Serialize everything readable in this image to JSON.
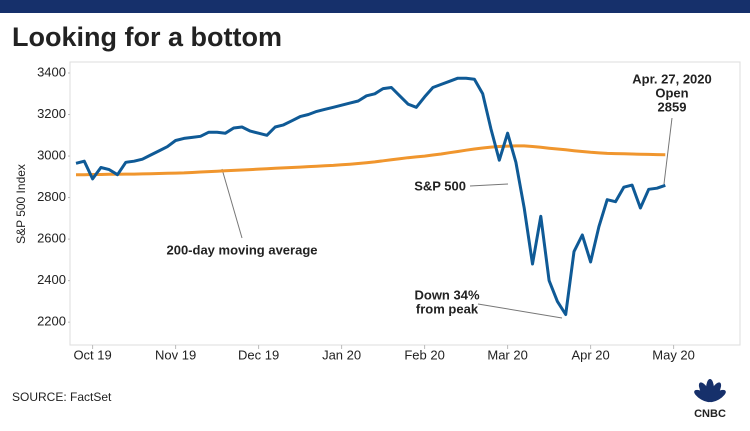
{
  "chart_data": {
    "type": "line",
    "title": "Looking for a bottom",
    "y_label": "S&P 500 Index",
    "source": "SOURCE: FactSet",
    "logo": "CNBC",
    "categories": [
      null,
      null,
      "Oct 19",
      null,
      null,
      null,
      null,
      null,
      null,
      null,
      null,
      null,
      "Nov 19",
      null,
      null,
      null,
      null,
      null,
      null,
      null,
      null,
      null,
      "Dec 19",
      null,
      null,
      null,
      null,
      null,
      null,
      null,
      null,
      null,
      "Jan 20",
      null,
      null,
      null,
      null,
      null,
      null,
      null,
      null,
      null,
      "Feb 20",
      null,
      null,
      null,
      null,
      null,
      null,
      null,
      null,
      null,
      "Mar 20",
      null,
      null,
      null,
      null,
      null,
      null,
      null,
      null,
      null,
      "Apr 20",
      null,
      null,
      null,
      null,
      null,
      null,
      null,
      null,
      null,
      "May 20"
    ],
    "series": [
      {
        "name": "S&P 500",
        "color": "#0f5a96",
        "values": [
          2965,
          2975,
          2890,
          2945,
          2935,
          2910,
          2970,
          2975,
          2985,
          3005,
          3025,
          3045,
          3075,
          3085,
          3090,
          3095,
          3115,
          3115,
          3110,
          3135,
          3140,
          3120,
          3110,
          3100,
          3140,
          3150,
          3170,
          3190,
          3200,
          3215,
          3225,
          3235,
          3245,
          3255,
          3265,
          3290,
          3300,
          3325,
          3330,
          3290,
          3250,
          3235,
          3285,
          3330,
          3345,
          3360,
          3375,
          3375,
          3370,
          3300,
          3130,
          2980,
          3110,
          2970,
          2750,
          2480,
          2710,
          2400,
          2300,
          2237,
          2540,
          2620,
          2490,
          2660,
          2790,
          2780,
          2850,
          2860,
          2750,
          2840,
          2845,
          2859,
          null
        ]
      },
      {
        "name": "200-day moving average",
        "color": "#f0962e",
        "values": [
          2910,
          2910,
          2911,
          2911,
          2912,
          2912,
          2913,
          2913,
          2914,
          2915,
          2916,
          2917,
          2918,
          2919,
          2921,
          2923,
          2925,
          2927,
          2929,
          2931,
          2933,
          2935,
          2937,
          2939,
          2941,
          2943,
          2945,
          2947,
          2949,
          2951,
          2953,
          2955,
          2958,
          2961,
          2964,
          2968,
          2972,
          2977,
          2982,
          2987,
          2992,
          2996,
          3000,
          3005,
          3010,
          3016,
          3022,
          3028,
          3034,
          3039,
          3043,
          3046,
          3048,
          3049,
          3049,
          3046,
          3042,
          3038,
          3034,
          3030,
          3026,
          3022,
          3018,
          3015,
          3013,
          3012,
          3011,
          3010,
          3009,
          3008,
          3007,
          3006,
          null
        ]
      }
    ],
    "ylim": [
      2090,
      3453
    ],
    "yticks": [
      2200,
      2400,
      2600,
      2800,
      3000,
      3200,
      3400
    ],
    "grid": false,
    "annotations": [
      {
        "lines": [
          "Apr. 27, 2020",
          "Open",
          "2859"
        ]
      },
      {
        "lines": [
          "Down 34%",
          "from peak"
        ]
      }
    ]
  }
}
